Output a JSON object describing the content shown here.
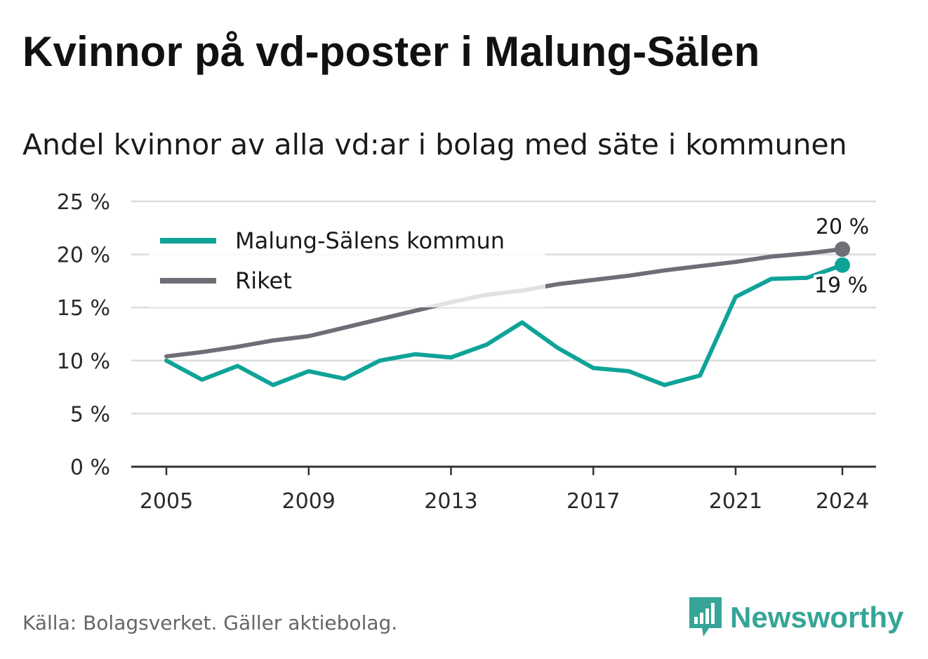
{
  "title": "Kvinnor på vd-poster i Malung-Sälen",
  "subtitle": "Andel kvinnor av alla vd:ar i bolag med säte i kommunen",
  "source": "Källa: Bolagsverket. Gäller aktiebolag.",
  "brand": {
    "name": "Newsworthy",
    "logo_icon": "bar-chart-bubble-icon",
    "color": "#36a597"
  },
  "chart_data": {
    "type": "line",
    "x": [
      2005,
      2006,
      2007,
      2008,
      2009,
      2010,
      2011,
      2012,
      2013,
      2014,
      2015,
      2016,
      2017,
      2018,
      2019,
      2020,
      2021,
      2022,
      2023,
      2024
    ],
    "xticks": [
      2005,
      2009,
      2013,
      2017,
      2021,
      2024
    ],
    "xticklabels": [
      "2005",
      "2009",
      "2013",
      "2017",
      "2021",
      "2024"
    ],
    "ylim": [
      0,
      25
    ],
    "yticks": [
      0,
      5,
      10,
      15,
      20,
      25
    ],
    "yticklabels": [
      "0 %",
      "5 %",
      "10 %",
      "15 %",
      "20 %",
      "25 %"
    ],
    "grid": true,
    "legend_position": "top-left",
    "series": [
      {
        "name": "Malung-Sälens kommun",
        "color": "#0fa398",
        "values": [
          10.0,
          8.2,
          9.5,
          7.7,
          9.0,
          8.3,
          10.0,
          10.6,
          10.3,
          11.5,
          13.6,
          11.2,
          9.3,
          9.0,
          7.7,
          8.6,
          16.0,
          17.7,
          17.8,
          19.0
        ],
        "end_label": "19 %"
      },
      {
        "name": "Riket",
        "color": "#6f6e76",
        "values": [
          10.4,
          10.8,
          11.3,
          11.9,
          12.3,
          13.1,
          13.9,
          14.7,
          15.5,
          16.2,
          16.6,
          17.2,
          17.6,
          18.0,
          18.5,
          18.9,
          19.3,
          19.8,
          20.1,
          20.5
        ],
        "end_label": "20 %"
      }
    ]
  }
}
